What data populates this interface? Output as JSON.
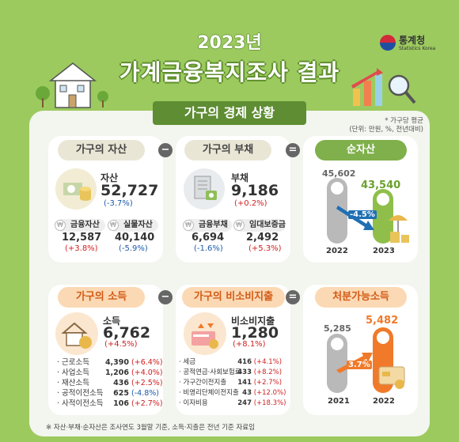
{
  "header": {
    "year": "2023년",
    "title": "가계금융복지조사 결과",
    "agency_ko": "통계청",
    "agency_en": "Statistics Korea"
  },
  "section_title": "가구의 경제 상황",
  "unit_note_1": "* 가구당 평균",
  "unit_note_2": "(단위: 만원, %, 전년대비)",
  "assets": {
    "pill": "가구의 자산",
    "label": "자산",
    "value": "52,727",
    "change": "(-3.7%)",
    "sub": [
      {
        "label": "금융자산",
        "value": "12,587",
        "change": "(+3.8%)"
      },
      {
        "label": "실물자산",
        "value": "40,140",
        "change": "(-5.9%)"
      }
    ]
  },
  "debt": {
    "pill": "가구의 부채",
    "label": "부채",
    "value": "9,186",
    "change": "(+0.2%)",
    "sub": [
      {
        "label": "금융부채",
        "value": "6,694",
        "change": "(-1.6%)"
      },
      {
        "label": "임대보증금",
        "value": "2,492",
        "change": "(+5.3%)"
      }
    ]
  },
  "net_assets": {
    "pill": "순자산",
    "bars": [
      {
        "year": "2022",
        "value": "45,602"
      },
      {
        "year": "2023",
        "value": "43,540"
      }
    ],
    "change": "-4.5%"
  },
  "income": {
    "pill": "가구의 소득",
    "label": "소득",
    "value": "6,762",
    "change": "(+4.5%)",
    "items": [
      {
        "label": "근로소득",
        "value": "4,390",
        "change": "(+6.4%)"
      },
      {
        "label": "사업소득",
        "value": "1,206",
        "change": "(+4.0%)"
      },
      {
        "label": "재산소득",
        "value": "436",
        "change": "(+2.5%)"
      },
      {
        "label": "공적이전소득",
        "value": "625",
        "change": "(-4.8%)"
      },
      {
        "label": "사적이전소득",
        "value": "106",
        "change": "(+2.7%)"
      }
    ]
  },
  "nonconsumption": {
    "pill": "가구의 비소비지출",
    "label": "비소비지출",
    "value": "1,280",
    "change": "(+8.1%)",
    "items": [
      {
        "label": "세금",
        "value": "416",
        "change": "(+4.1%)"
      },
      {
        "label": "공적연금·사회보험료",
        "value": "433",
        "change": "(+8.2%)"
      },
      {
        "label": "가구간이전지출",
        "value": "141",
        "change": "(+2.7%)"
      },
      {
        "label": "비영리단체이전지출",
        "value": "43",
        "change": "(+12.0%)"
      },
      {
        "label": "이자비용",
        "value": "247",
        "change": "(+18.3%)"
      }
    ]
  },
  "disposable": {
    "pill": "처분가능소득",
    "bars": [
      {
        "year": "2021",
        "value": "5,285"
      },
      {
        "year": "2022",
        "value": "5,482"
      }
    ],
    "change": "3.7%"
  },
  "footnote": "※ 자산·부채·순자산은 조사연도 3월말 기준, 소득·지출은 전년 기준 자료임",
  "ops": {
    "minus": "−",
    "equals": "="
  },
  "coin_symbol": "₩",
  "colors": {
    "green": "#7fb04b",
    "orange": "#f07a2a",
    "grey_bar": "#b9b9b9",
    "negative": "#1c5aa8",
    "positive": "#d02020"
  }
}
